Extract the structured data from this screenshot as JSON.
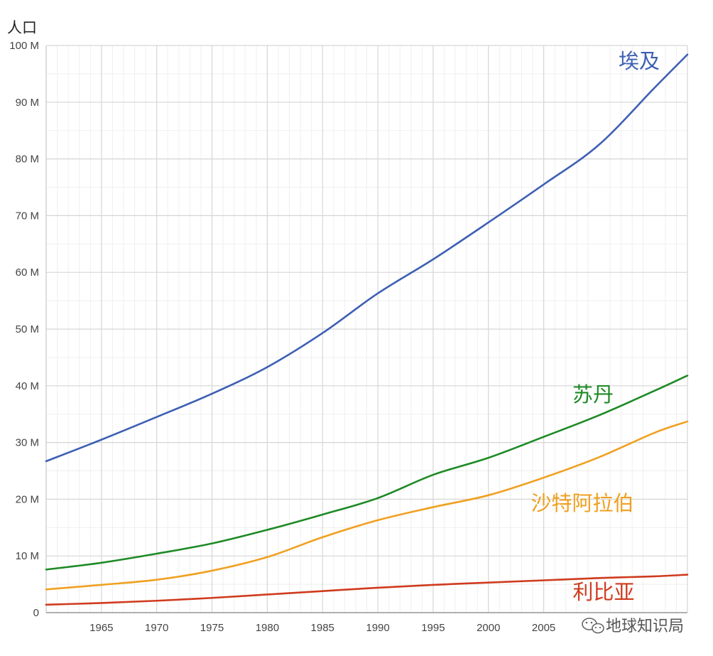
{
  "chart_data": {
    "type": "line",
    "title": "",
    "xlabel": "",
    "ylabel": "人口",
    "xlim": [
      1960,
      2018
    ],
    "ylim": [
      0,
      100000000
    ],
    "x_ticks": [
      1965,
      1970,
      1975,
      1980,
      1985,
      1990,
      1995,
      2000,
      2005
    ],
    "x_tick_labels": [
      "1965",
      "1970",
      "1975",
      "1980",
      "1985",
      "1990",
      "1995",
      "2000",
      "2005"
    ],
    "y_ticks": [
      0,
      10000000,
      20000000,
      30000000,
      40000000,
      50000000,
      60000000,
      70000000,
      80000000,
      90000000,
      100000000
    ],
    "y_tick_labels": [
      "0",
      "10 M",
      "20 M",
      "30 M",
      "40 M",
      "50 M",
      "60 M",
      "70 M",
      "80 M",
      "90 M",
      "100 M"
    ],
    "grid": true,
    "x": [
      1960,
      1965,
      1970,
      1975,
      1980,
      1985,
      1990,
      1995,
      2000,
      2005,
      2010,
      2015,
      2018
    ],
    "series": [
      {
        "name": "埃及",
        "color": "#3d5fb4",
        "values": [
          26700000,
          30500000,
          34500000,
          38600000,
          43300000,
          49300000,
          56300000,
          62300000,
          68800000,
          75500000,
          82500000,
          92500000,
          98400000
        ]
      },
      {
        "name": "苏丹",
        "color": "#1e8a25",
        "values": [
          7600000,
          8800000,
          10400000,
          12200000,
          14600000,
          17300000,
          20200000,
          24300000,
          27300000,
          31000000,
          34800000,
          39100000,
          41800000
        ]
      },
      {
        "name": "沙特阿拉伯",
        "color": "#f0a020",
        "values": [
          4100000,
          4900000,
          5800000,
          7400000,
          9800000,
          13300000,
          16300000,
          18600000,
          20700000,
          23800000,
          27400000,
          31700000,
          33700000
        ]
      },
      {
        "name": "利比亚",
        "color": "#cf3b1e",
        "values": [
          1400000,
          1700000,
          2100000,
          2600000,
          3200000,
          3800000,
          4400000,
          4900000,
          5300000,
          5700000,
          6100000,
          6400000,
          6700000
        ]
      }
    ]
  },
  "watermark": {
    "text": "地球知识局",
    "icon": "wechat-icon"
  }
}
